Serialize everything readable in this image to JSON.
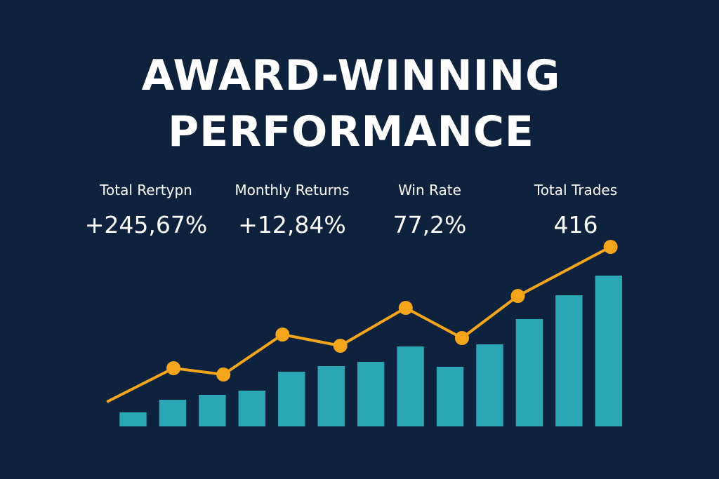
{
  "title": [
    "AWARD-WINNING",
    "PERFORMANCE"
  ],
  "stats": [
    {
      "label": "Total Rertурn",
      "value": "+245,67%"
    },
    {
      "label": "Monthly Returns",
      "value": "+12,84%"
    },
    {
      "label": "Win Rate",
      "value": "77,2%"
    },
    {
      "label": "Total Trades",
      "value": "416"
    }
  ],
  "chart_data": {
    "type": "bar",
    "categories": [
      null,
      null,
      null,
      null,
      null,
      null,
      null,
      null,
      null,
      null,
      null,
      null,
      null
    ],
    "series": [
      {
        "type": "bar",
        "color": "#2ba6b4",
        "values": [
          20,
          38,
          45,
          51,
          78,
          86,
          92,
          114,
          85,
          117,
          153,
          187,
          215
        ]
      },
      {
        "type": "line",
        "color": "#f4a51c",
        "x": [
          -0.16,
          1.52,
          2.78,
          4.27,
          5.73,
          7.38,
          8.8,
          10.21,
          12.55
        ],
        "values": [
          35,
          83,
          74,
          131,
          115,
          169,
          126,
          186,
          256
        ]
      }
    ],
    "xlim": [
      -0.2,
      13
    ],
    "ylim": [
      0,
      260
    ],
    "grid": false
  }
}
